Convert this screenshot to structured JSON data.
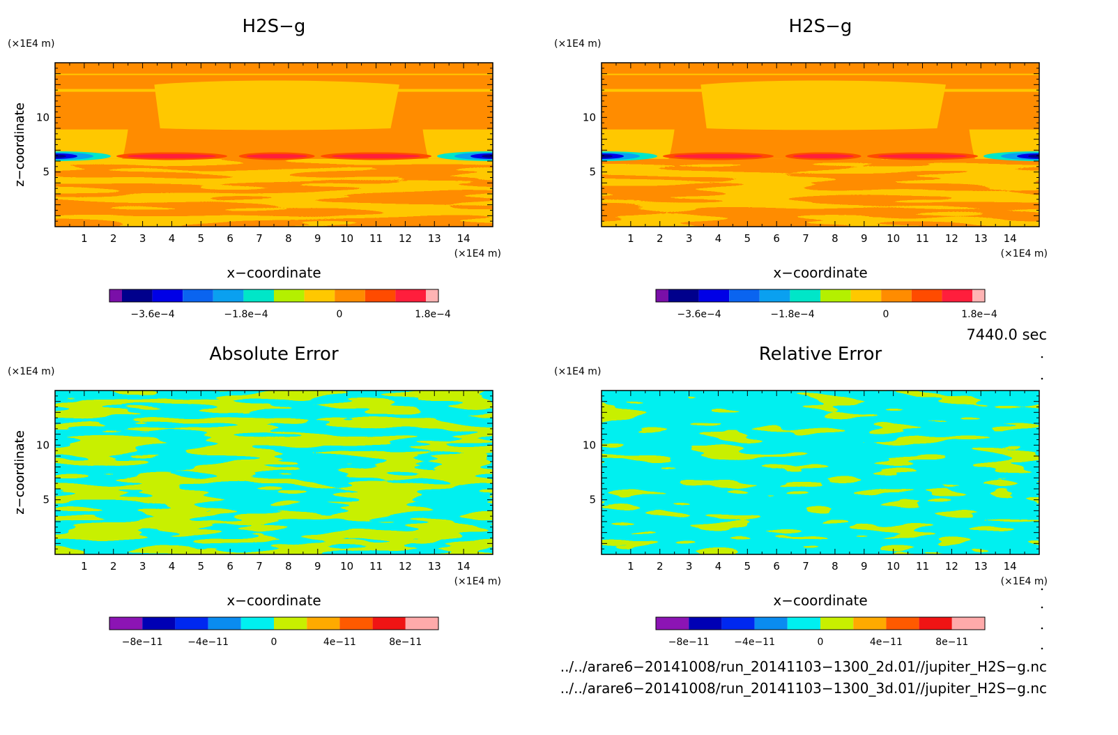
{
  "chart_data": [
    {
      "type": "heatmap",
      "title": "H2S−g",
      "xlabel": "x−coordinate",
      "ylabel": "z−coordinate",
      "x_unit": "(×1E4 m)",
      "y_unit": "(×1E4 m)",
      "xlim": [
        0,
        15
      ],
      "ylim": [
        0,
        15
      ],
      "x_ticks": [
        "1",
        "2",
        "3",
        "4",
        "5",
        "6",
        "7",
        "8",
        "9",
        "10",
        "11",
        "12",
        "13",
        "14"
      ],
      "y_ticks": [
        "5",
        "10"
      ],
      "colorbar": {
        "colors": [
          "#7a0fa8",
          "#00008c",
          "#0000e6",
          "#0a64f0",
          "#0aa0f0",
          "#00e6c8",
          "#b4f000",
          "#ffc800",
          "#ff8c00",
          "#ff4b00",
          "#ff1e3c",
          "#ffb4b4"
        ],
        "tick_labels": [
          "−3.6e−4",
          "−1.8e−4",
          "0",
          "1.8e−4"
        ]
      },
      "pattern": "h2s"
    },
    {
      "type": "heatmap",
      "title": "H2S−g",
      "xlabel": "x−coordinate",
      "ylabel": "z−coordinate",
      "x_unit": "(×1E4 m)",
      "y_unit": "(×1E4 m)",
      "xlim": [
        0,
        15
      ],
      "ylim": [
        0,
        15
      ],
      "x_ticks": [
        "1",
        "2",
        "3",
        "4",
        "5",
        "6",
        "7",
        "8",
        "9",
        "10",
        "11",
        "12",
        "13",
        "14"
      ],
      "y_ticks": [
        "5",
        "10"
      ],
      "colorbar": {
        "colors": [
          "#7a0fa8",
          "#00008c",
          "#0000e6",
          "#0a64f0",
          "#0aa0f0",
          "#00e6c8",
          "#b4f000",
          "#ffc800",
          "#ff8c00",
          "#ff4b00",
          "#ff1e3c",
          "#ffb4b4"
        ],
        "tick_labels": [
          "−3.6e−4",
          "−1.8e−4",
          "0",
          "1.8e−4"
        ]
      },
      "pattern": "h2s"
    },
    {
      "type": "heatmap",
      "title": "Absolute Error",
      "xlabel": "x−coordinate",
      "ylabel": "z−coordinate",
      "x_unit": "(×1E4 m)",
      "y_unit": "(×1E4 m)",
      "xlim": [
        0,
        15
      ],
      "ylim": [
        0,
        15
      ],
      "x_ticks": [
        "1",
        "2",
        "3",
        "4",
        "5",
        "6",
        "7",
        "8",
        "9",
        "10",
        "11",
        "12",
        "13",
        "14"
      ],
      "y_ticks": [
        "5",
        "10"
      ],
      "colorbar": {
        "colors": [
          "#8c14b4",
          "#0000b4",
          "#0028f0",
          "#0a8cf0",
          "#00f0f0",
          "#c8f000",
          "#ffaa00",
          "#ff5a00",
          "#f01414",
          "#ffaaaa"
        ],
        "tick_labels": [
          "−8e−11",
          "−4e−11",
          "0",
          "4e−11",
          "8e−11"
        ]
      },
      "pattern": "error"
    },
    {
      "type": "heatmap",
      "title": "Relative Error",
      "xlabel": "x−coordinate",
      "ylabel": "z−coordinate",
      "x_unit": "(×1E4 m)",
      "y_unit": "(×1E4 m)",
      "xlim": [
        0,
        15
      ],
      "ylim": [
        0,
        15
      ],
      "x_ticks": [
        "1",
        "2",
        "3",
        "4",
        "5",
        "6",
        "7",
        "8",
        "9",
        "10",
        "11",
        "12",
        "13",
        "14"
      ],
      "y_ticks": [
        "5",
        "10"
      ],
      "colorbar": {
        "colors": [
          "#8c14b4",
          "#0000b4",
          "#0028f0",
          "#0a8cf0",
          "#00f0f0",
          "#c8f000",
          "#ffaa00",
          "#ff5a00",
          "#f01414",
          "#ffaaaa"
        ],
        "tick_labels": [
          "−8e−11",
          "−4e−11",
          "0",
          "4e−11",
          "8e−11"
        ]
      },
      "pattern": "error"
    }
  ],
  "time_label": "7440.0 sec",
  "file_paths": [
    "../../arare6−20141008/run_20141103−1300_2d.01//jupiter_H2S−g.nc",
    "../../arare6−20141008/run_20141103−1300_3d.01//jupiter_H2S−g.nc"
  ]
}
